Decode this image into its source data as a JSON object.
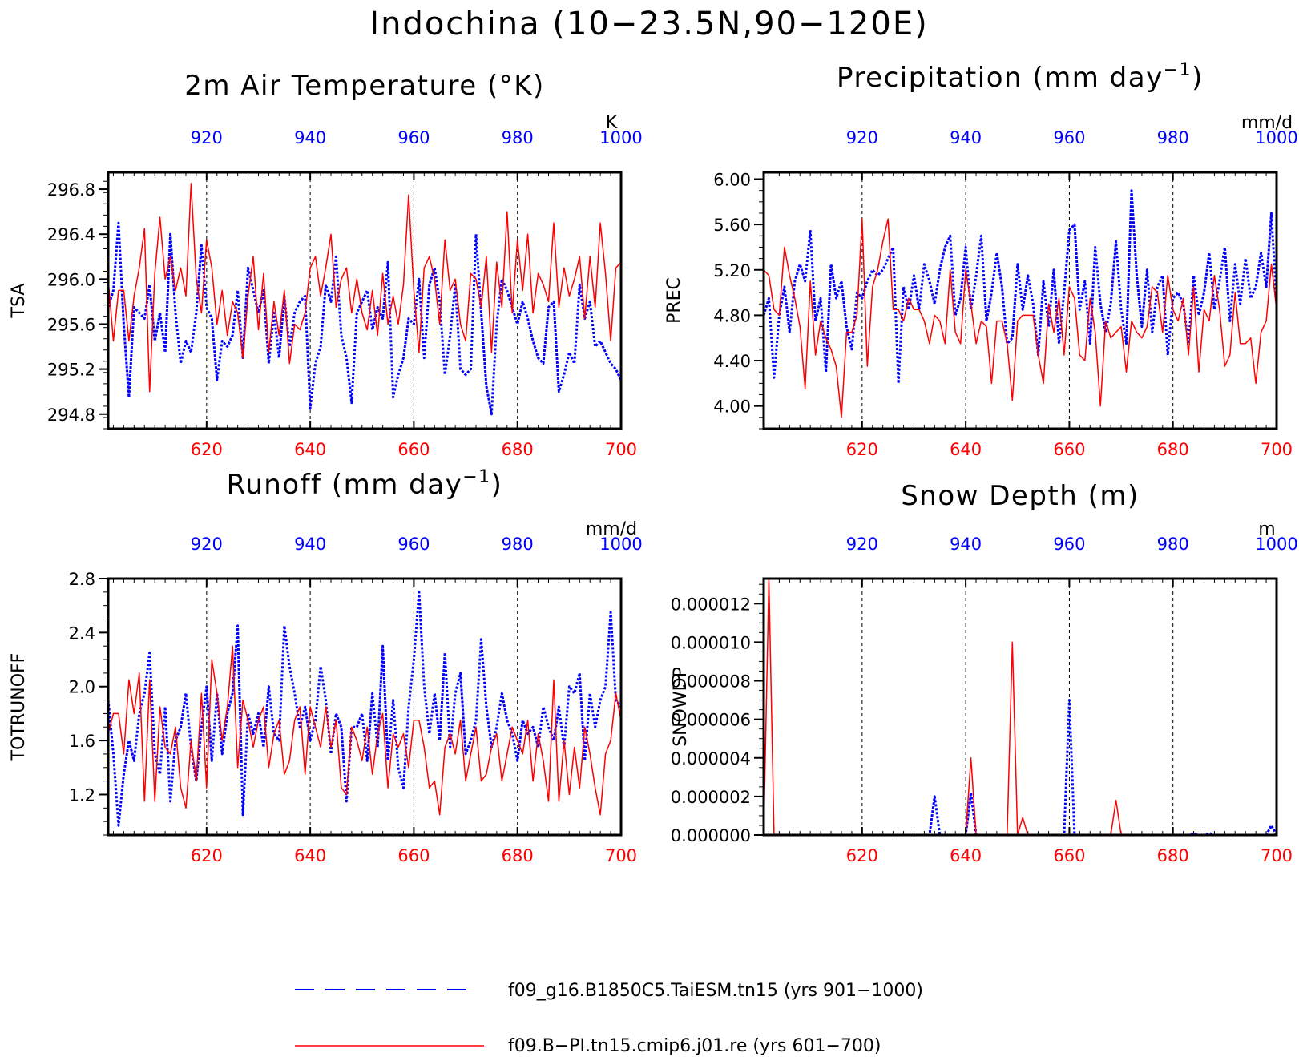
{
  "figure": {
    "title": "Indochina (10−23.5N,90−120E)"
  },
  "colors": {
    "blue_series": "#0000ff",
    "red_series": "#ff0000",
    "frame": "#000000"
  },
  "legend": [
    {
      "label": "f09_g16.B1850C5.TaiESM.tn15 (yrs 901−1000)",
      "style": "dashed",
      "color": "#0000ff"
    },
    {
      "label": "f09.B−PI.tn15.cmip6.j01.re (yrs 601−700)",
      "style": "solid",
      "color": "#ff0000"
    }
  ],
  "chart_data": [
    {
      "id": "tsa",
      "type": "line",
      "title": "2m Air Temperature (°K)",
      "ylabel": "TSA",
      "unit_label": "K",
      "xlim_bottom": [
        601,
        700
      ],
      "xlim_top": [
        901,
        1000
      ],
      "ylim": [
        294.67,
        296.95
      ],
      "x_ticks_bottom": [
        620,
        640,
        660,
        680,
        700
      ],
      "x_ticks_top": [
        920,
        940,
        960,
        980,
        1000
      ],
      "y_ticks": [
        294.8,
        295.2,
        295.6,
        296.0,
        296.4,
        296.8
      ],
      "y_tick_labels": [
        "294.8",
        "295.2",
        "295.6",
        "296.0",
        "296.4",
        "296.8"
      ],
      "series": [
        {
          "axis": "top",
          "color": "#0000ff",
          "style": "dashed",
          "values": [
            295.75,
            295.9,
            296.5,
            295.6,
            294.95,
            295.75,
            295.7,
            295.65,
            295.95,
            295.45,
            295.7,
            295.35,
            296.4,
            295.7,
            295.25,
            295.45,
            295.35,
            295.7,
            296.3,
            295.75,
            295.65,
            295.1,
            295.45,
            295.4,
            295.5,
            295.9,
            295.3,
            296.1,
            295.9,
            295.7,
            295.9,
            295.25,
            295.7,
            295.3,
            295.85,
            295.4,
            295.7,
            295.8,
            295.85,
            294.85,
            295.25,
            295.4,
            295.95,
            295.8,
            296.2,
            295.5,
            295.3,
            294.9,
            295.7,
            295.8,
            295.9,
            295.55,
            295.75,
            295.65,
            296.15,
            294.95,
            295.15,
            295.3,
            295.65,
            295.6,
            296.0,
            295.3,
            295.95,
            296.1,
            295.8,
            295.15,
            295.5,
            295.95,
            295.2,
            295.15,
            295.2,
            296.4,
            295.7,
            295.05,
            294.8,
            295.6,
            296.0,
            295.9,
            295.75,
            295.6,
            295.8,
            295.65,
            295.45,
            295.3,
            295.25,
            295.75,
            295.8,
            295.0,
            295.15,
            295.35,
            295.25,
            295.95,
            295.65,
            295.8,
            295.4,
            295.45,
            295.35,
            295.25,
            295.2,
            295.1
          ]
        },
        {
          "axis": "bottom",
          "color": "#ff0000",
          "style": "solid",
          "values": [
            296.0,
            295.45,
            295.9,
            295.9,
            295.45,
            295.85,
            296.1,
            296.45,
            295.0,
            296.05,
            296.55,
            296.0,
            296.2,
            295.9,
            296.1,
            295.85,
            296.85,
            296.0,
            295.7,
            296.35,
            296.1,
            295.6,
            295.9,
            295.5,
            295.8,
            295.7,
            295.3,
            295.85,
            296.2,
            295.55,
            296.05,
            295.35,
            295.8,
            295.5,
            295.9,
            295.25,
            295.6,
            295.55,
            295.7,
            296.1,
            296.2,
            295.85,
            296.1,
            296.4,
            295.75,
            296.0,
            296.1,
            295.7,
            296.0,
            295.7,
            295.55,
            295.9,
            295.5,
            296.05,
            295.6,
            295.85,
            295.6,
            295.95,
            296.75,
            295.9,
            295.35,
            296.1,
            296.2,
            296.0,
            295.6,
            296.35,
            295.9,
            296.0,
            295.6,
            295.45,
            296.05,
            296.0,
            295.75,
            296.2,
            295.35,
            296.15,
            295.75,
            296.6,
            295.7,
            296.35,
            295.9,
            296.4,
            295.7,
            296.05,
            295.95,
            295.8,
            296.5,
            295.75,
            296.1,
            295.85,
            296.0,
            296.2,
            295.65,
            296.2,
            295.75,
            296.5,
            296.05,
            295.45,
            296.1,
            296.15
          ]
        }
      ]
    },
    {
      "id": "prec",
      "type": "line",
      "title": "Precipitation (mm day",
      "title_sup": "−1",
      "title_end": ")",
      "ylabel": "PREC",
      "unit_label": "mm/d",
      "xlim_bottom": [
        601,
        700
      ],
      "xlim_top": [
        901,
        1000
      ],
      "ylim": [
        3.8,
        6.06
      ],
      "x_ticks_bottom": [
        620,
        640,
        660,
        680,
        700
      ],
      "x_ticks_top": [
        920,
        940,
        960,
        980,
        1000
      ],
      "y_ticks": [
        4.0,
        4.4,
        4.8,
        5.2,
        5.6,
        6.0
      ],
      "y_tick_labels": [
        "4.00",
        "4.40",
        "4.80",
        "5.20",
        "5.60",
        "6.00"
      ],
      "series": [
        {
          "axis": "top",
          "color": "#0000ff",
          "style": "dashed",
          "values": [
            4.8,
            4.95,
            4.25,
            4.8,
            5.05,
            4.65,
            5.1,
            5.25,
            5.1,
            5.55,
            4.75,
            4.95,
            4.3,
            5.25,
            4.95,
            5.1,
            4.7,
            4.5,
            5.0,
            4.95,
            5.1,
            5.2,
            5.15,
            5.2,
            5.3,
            5.4,
            4.2,
            5.05,
            4.85,
            5.15,
            4.85,
            5.25,
            5.1,
            4.9,
            5.2,
            5.4,
            5.5,
            4.8,
            4.95,
            5.4,
            4.85,
            5.15,
            5.5,
            4.75,
            5.0,
            5.35,
            5.05,
            4.55,
            4.6,
            5.25,
            4.85,
            5.15,
            4.9,
            4.45,
            5.1,
            4.7,
            5.2,
            4.55,
            5.0,
            5.55,
            5.6,
            4.85,
            5.1,
            4.55,
            5.4,
            4.9,
            4.65,
            4.9,
            5.45,
            4.85,
            4.55,
            5.9,
            5.15,
            4.7,
            5.2,
            4.65,
            5.05,
            5.15,
            4.45,
            4.95,
            5.0,
            4.9,
            4.55,
            5.15,
            4.8,
            5.0,
            5.35,
            4.85,
            5.1,
            5.4,
            4.75,
            5.25,
            4.9,
            5.3,
            4.95,
            5.05,
            5.35,
            5.05,
            5.7,
            4.9
          ]
        },
        {
          "axis": "bottom",
          "color": "#ff0000",
          "style": "solid",
          "values": [
            5.2,
            5.15,
            4.85,
            4.8,
            5.4,
            5.15,
            4.95,
            4.7,
            4.15,
            5.1,
            4.45,
            4.75,
            4.6,
            4.5,
            4.35,
            3.9,
            4.65,
            4.65,
            4.8,
            5.65,
            4.35,
            5.05,
            5.2,
            5.45,
            5.65,
            4.85,
            4.85,
            4.75,
            4.95,
            4.85,
            4.85,
            4.75,
            4.55,
            4.8,
            4.75,
            4.55,
            5.2,
            4.65,
            4.55,
            5.2,
            4.9,
            4.55,
            4.75,
            4.7,
            4.2,
            4.75,
            4.75,
            4.55,
            4.05,
            4.75,
            4.8,
            4.8,
            4.8,
            4.45,
            4.2,
            4.9,
            4.65,
            4.95,
            4.45,
            5.05,
            4.95,
            4.45,
            4.4,
            4.95,
            4.65,
            4.0,
            4.75,
            4.6,
            4.65,
            4.7,
            4.3,
            4.75,
            4.65,
            4.6,
            4.7,
            5.05,
            5.0,
            4.65,
            5.15,
            4.85,
            4.75,
            4.95,
            4.45,
            5.05,
            4.3,
            4.85,
            4.75,
            5.15,
            4.85,
            4.35,
            4.45,
            5.0,
            4.55,
            4.55,
            4.6,
            4.2,
            4.65,
            4.75,
            5.25,
            4.85
          ]
        }
      ]
    },
    {
      "id": "runoff",
      "type": "line",
      "title": "Runoff (mm day",
      "title_sup": "−1",
      "title_end": ")",
      "ylabel": "TOTRUNOFF",
      "unit_label": "mm/d",
      "xlim_bottom": [
        601,
        700
      ],
      "xlim_top": [
        901,
        1000
      ],
      "ylim": [
        0.9,
        2.8
      ],
      "x_ticks_bottom": [
        620,
        640,
        660,
        680,
        700
      ],
      "x_ticks_top": [
        920,
        940,
        960,
        980,
        1000
      ],
      "y_ticks": [
        1.2,
        1.6,
        2.0,
        2.4,
        2.8
      ],
      "y_tick_labels": [
        "1.2",
        "1.6",
        "2.0",
        "2.4",
        "2.8"
      ],
      "series": [
        {
          "axis": "top",
          "color": "#0000ff",
          "style": "dashed",
          "values": [
            1.9,
            1.5,
            0.97,
            1.35,
            1.6,
            1.45,
            1.8,
            1.95,
            2.25,
            1.5,
            1.35,
            1.85,
            1.15,
            1.6,
            1.7,
            1.95,
            1.55,
            1.3,
            1.7,
            2.0,
            1.45,
            1.95,
            1.5,
            1.8,
            1.95,
            2.45,
            1.05,
            1.8,
            1.65,
            1.8,
            1.55,
            2.0,
            1.65,
            1.6,
            2.45,
            2.15,
            1.95,
            1.7,
            1.85,
            1.6,
            1.75,
            2.15,
            1.9,
            1.5,
            1.8,
            1.7,
            1.15,
            1.7,
            1.7,
            1.8,
            1.45,
            1.95,
            1.55,
            2.3,
            1.45,
            1.9,
            1.4,
            1.25,
            1.85,
            2.2,
            2.7,
            2.0,
            1.65,
            1.95,
            1.6,
            2.25,
            1.55,
            1.95,
            2.1,
            1.5,
            1.6,
            1.75,
            2.35,
            1.85,
            1.55,
            1.7,
            1.95,
            1.75,
            1.65,
            1.45,
            1.75,
            1.65,
            1.7,
            1.55,
            1.85,
            1.7,
            1.6,
            1.85,
            1.55,
            2.0,
            1.95,
            2.1,
            1.45,
            1.95,
            1.7,
            1.9,
            2.0,
            2.55,
            1.9,
            1.85
          ]
        },
        {
          "axis": "bottom",
          "color": "#ff0000",
          "style": "solid",
          "values": [
            1.65,
            1.8,
            1.8,
            1.5,
            2.05,
            1.8,
            2.1,
            1.15,
            2.05,
            1.15,
            1.85,
            1.55,
            1.5,
            1.7,
            1.25,
            1.1,
            1.6,
            1.3,
            1.95,
            1.25,
            2.2,
            1.95,
            1.6,
            1.85,
            2.3,
            1.4,
            1.9,
            1.75,
            1.55,
            1.75,
            1.85,
            1.4,
            1.65,
            1.75,
            1.35,
            1.45,
            1.75,
            1.85,
            1.35,
            1.85,
            1.7,
            1.55,
            1.85,
            1.55,
            1.75,
            1.25,
            1.2,
            1.7,
            1.6,
            1.45,
            1.7,
            1.35,
            1.65,
            1.8,
            1.25,
            1.65,
            1.55,
            1.65,
            1.4,
            1.75,
            1.75,
            1.55,
            1.25,
            1.3,
            1.05,
            1.55,
            1.65,
            1.5,
            1.75,
            1.3,
            1.5,
            1.7,
            1.3,
            1.35,
            1.55,
            1.65,
            1.3,
            1.5,
            1.7,
            1.6,
            1.5,
            1.75,
            1.3,
            1.65,
            1.45,
            1.15,
            2.05,
            1.15,
            1.6,
            1.2,
            1.55,
            1.25,
            1.7,
            1.5,
            1.25,
            1.05,
            1.5,
            1.6,
            1.95,
            1.75
          ]
        }
      ]
    },
    {
      "id": "snowdp",
      "type": "line",
      "title": "Snow Depth (m)",
      "ylabel": "SNOWDP",
      "unit_label": "m",
      "xlim_bottom": [
        601,
        700
      ],
      "xlim_top": [
        901,
        1000
      ],
      "ylim": [
        0,
        1.33e-05
      ],
      "x_ticks_bottom": [
        620,
        640,
        660,
        680,
        700
      ],
      "x_ticks_top": [
        920,
        940,
        960,
        980,
        1000
      ],
      "y_ticks": [
        0,
        2e-06,
        4e-06,
        6e-06,
        8e-06,
        1e-05,
        1.2e-05
      ],
      "y_tick_labels": [
        "0.000000",
        "0.000002",
        "0.000004",
        "0.000006",
        "0.000008",
        "0.000010",
        "0.000012"
      ],
      "series": [
        {
          "axis": "top",
          "color": "#0000ff",
          "style": "dashed",
          "values": [
            0,
            0,
            0,
            0,
            0,
            0,
            0,
            0,
            0,
            0,
            0,
            0,
            0,
            0,
            0,
            0,
            0,
            0,
            0,
            0,
            0,
            0,
            0,
            0,
            0,
            0,
            0,
            0,
            0,
            0,
            0,
            0,
            0,
            2e-06,
            0,
            0,
            0,
            0,
            0,
            0,
            2.2e-06,
            0,
            0,
            0,
            0,
            0,
            0,
            0,
            0,
            0,
            0,
            0,
            0,
            0,
            0,
            0,
            0,
            0,
            0,
            7e-06,
            0,
            0,
            0,
            0,
            0,
            0,
            0,
            0,
            0,
            0,
            0,
            0,
            0,
            0,
            0,
            0,
            0,
            0,
            0,
            0,
            0,
            0,
            0,
            1e-07,
            0,
            0,
            1e-07,
            0,
            0,
            0,
            0,
            0,
            0,
            0,
            0,
            0,
            0,
            0,
            5e-07,
            0
          ]
        },
        {
          "axis": "bottom",
          "color": "#ff0000",
          "style": "solid",
          "values": [
            0,
            1.33e-05,
            0,
            0,
            0,
            0,
            0,
            0,
            0,
            0,
            0,
            0,
            0,
            0,
            0,
            0,
            0,
            0,
            0,
            0,
            0,
            0,
            0,
            0,
            0,
            0,
            0,
            0,
            0,
            0,
            0,
            0,
            0,
            0,
            0,
            0,
            0,
            0,
            0,
            0,
            4e-06,
            0,
            0,
            0,
            0,
            0,
            0,
            0,
            1e-05,
            0,
            9e-07,
            0,
            0,
            0,
            0,
            0,
            0,
            0,
            0,
            0,
            0,
            0,
            0,
            0,
            0,
            0,
            0,
            0,
            1.8e-06,
            0,
            0,
            0,
            0,
            0,
            0,
            0,
            0,
            0,
            0,
            0,
            0,
            0,
            0,
            0,
            0,
            0,
            0,
            0,
            0,
            0,
            0,
            0,
            0,
            0,
            0,
            0,
            0,
            0,
            0,
            0
          ]
        }
      ]
    }
  ]
}
